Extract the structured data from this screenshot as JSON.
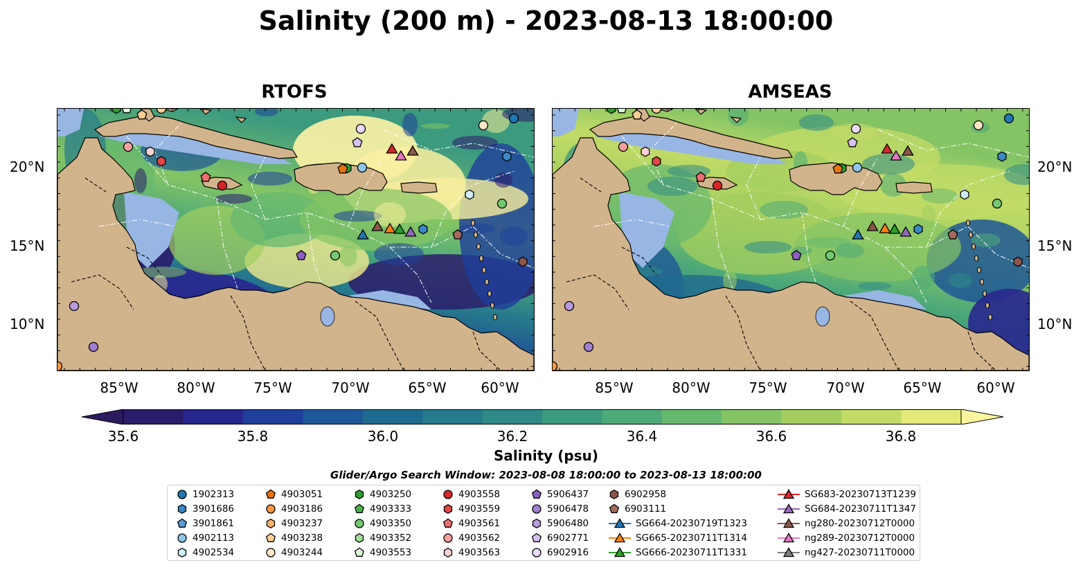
{
  "title": "Salinity (200 m) - 2023-08-13 18:00:00",
  "panels": [
    {
      "title": "RTOFS"
    },
    {
      "title": "AMSEAS"
    }
  ],
  "axes": {
    "lat_labels": [
      "20°N",
      "15°N",
      "10°N"
    ],
    "lon_labels": [
      "85°W",
      "80°W",
      "75°W",
      "70°W",
      "65°W",
      "60°W"
    ]
  },
  "colorbar": {
    "label": "Salinity (psu)",
    "ticks": [
      "35.6",
      "35.8",
      "36.0",
      "36.2",
      "36.4",
      "36.6",
      "36.8"
    ],
    "colors": [
      "#2b1c6b",
      "#28278e",
      "#1f3f9b",
      "#1d5797",
      "#1f6a8f",
      "#267a8b",
      "#2f8a86",
      "#3c9a7f",
      "#4eaa78",
      "#67b86f",
      "#84c465",
      "#a3ce5f",
      "#c2db67",
      "#e3ea79"
    ],
    "under_color": "#2c1a5e",
    "over_color": "#fbf5a0"
  },
  "legend": {
    "title": "Glider/Argo Search Window: 2023-08-08 18:00:00 to 2023-08-13 18:00:00",
    "columns": [
      [
        {
          "label": "1902313",
          "marker": "circle",
          "color": "#1f77b4"
        },
        {
          "label": "3901686",
          "marker": "hexagon",
          "color": "#3a88c4"
        },
        {
          "label": "3901861",
          "marker": "pentagon",
          "color": "#5b9bd5"
        },
        {
          "label": "4902113",
          "marker": "circle",
          "color": "#8ec7ea"
        },
        {
          "label": "4902534",
          "marker": "hexagon",
          "color": "#d0eefa"
        }
      ],
      [
        {
          "label": "4903051",
          "marker": "pentagon",
          "color": "#e9740f"
        },
        {
          "label": "4903186",
          "marker": "circle",
          "color": "#ff9640"
        },
        {
          "label": "4903237",
          "marker": "hexagon",
          "color": "#ffb46b"
        },
        {
          "label": "4903238",
          "marker": "pentagon",
          "color": "#ffcf96"
        },
        {
          "label": "4903244",
          "marker": "circle",
          "color": "#ffe6c4"
        }
      ],
      [
        {
          "label": "4903250",
          "marker": "hexagon",
          "color": "#2ca02c"
        },
        {
          "label": "4903333",
          "marker": "pentagon",
          "color": "#47b247"
        },
        {
          "label": "4903350",
          "marker": "circle",
          "color": "#73c973"
        },
        {
          "label": "4903352",
          "marker": "hexagon",
          "color": "#a6dfa0"
        },
        {
          "label": "4903553",
          "marker": "pentagon",
          "color": "#dcf7d6"
        }
      ],
      [
        {
          "label": "4903558",
          "marker": "circle",
          "color": "#d62728"
        },
        {
          "label": "4903559",
          "marker": "hexagon",
          "color": "#e04646"
        },
        {
          "label": "4903561",
          "marker": "pentagon",
          "color": "#ec6f6f"
        },
        {
          "label": "4903562",
          "marker": "circle",
          "color": "#f4a0a0"
        },
        {
          "label": "4903563",
          "marker": "hexagon",
          "color": "#fbd2d2"
        }
      ],
      [
        {
          "label": "5906437",
          "marker": "pentagon",
          "color": "#8a5fc0"
        },
        {
          "label": "5906478",
          "marker": "circle",
          "color": "#a07fd0"
        },
        {
          "label": "5906480",
          "marker": "hexagon",
          "color": "#b89be0"
        },
        {
          "label": "6902771",
          "marker": "pentagon",
          "color": "#d5c2f2"
        },
        {
          "label": "6902916",
          "marker": "circle",
          "color": "#e9dbfb"
        }
      ],
      [
        {
          "label": "6902958",
          "marker": "hexagon",
          "color": "#8c564b"
        },
        {
          "label": "6903111",
          "marker": "pentagon",
          "color": "#a86a5e"
        },
        {
          "label": "SG664-20230719T1323",
          "marker": "triangle-line",
          "color": "#1f77b4"
        },
        {
          "label": "SG665-20230711T1314",
          "marker": "triangle-line",
          "color": "#ff7f0e"
        },
        {
          "label": "SG666-20230711T1331",
          "marker": "triangle-line",
          "color": "#2ca02c"
        }
      ],
      [
        {
          "label": "SG683-20230713T1239",
          "marker": "triangle-line",
          "color": "#d62728"
        },
        {
          "label": "SG684-20230711T1347",
          "marker": "triangle-line",
          "color": "#9467bd"
        },
        {
          "label": "ng280-20230712T0000",
          "marker": "triangle-line",
          "color": "#8c564b"
        },
        {
          "label": "ng289-20230712T0000",
          "marker": "triangle-line",
          "color": "#e377c2"
        },
        {
          "label": "ng427-20230711T0000",
          "marker": "triangle-line",
          "color": "#7f7f7f"
        }
      ]
    ]
  },
  "map_colors": {
    "land": "#d2b48c",
    "shelf": "#97b6e3"
  }
}
